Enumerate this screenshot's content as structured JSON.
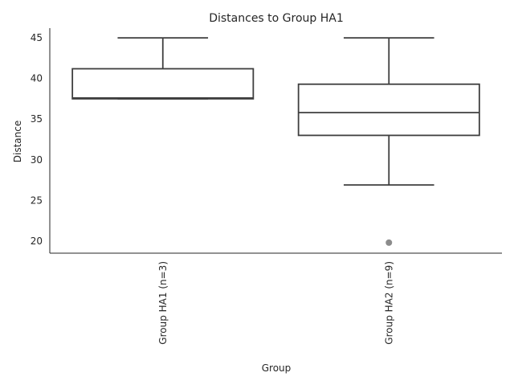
{
  "chart_data": {
    "type": "box",
    "title": "Distances to Group HA1",
    "xlabel": "Group",
    "ylabel": "Distance",
    "categories": [
      "Group HA1 (n=3)",
      "Group HA2 (n=9)"
    ],
    "boxes": [
      {
        "whisker_low": 37.5,
        "q1": 37.5,
        "median": 37.6,
        "q3": 41.2,
        "whisker_high": 45.0,
        "outliers": []
      },
      {
        "whisker_low": 26.9,
        "q1": 33.0,
        "median": 35.8,
        "q3": 39.3,
        "whisker_high": 45.0,
        "outliers": [
          19.8
        ]
      }
    ],
    "ylim": [
      18.5,
      46.2
    ],
    "yticks": [
      20,
      25,
      30,
      35,
      40,
      45
    ],
    "grid": false,
    "colors": {
      "box_line": "#3f3f3f",
      "box_fill": "#ffffff",
      "outlier": "#8c8c8c",
      "axis": "#262626"
    }
  }
}
